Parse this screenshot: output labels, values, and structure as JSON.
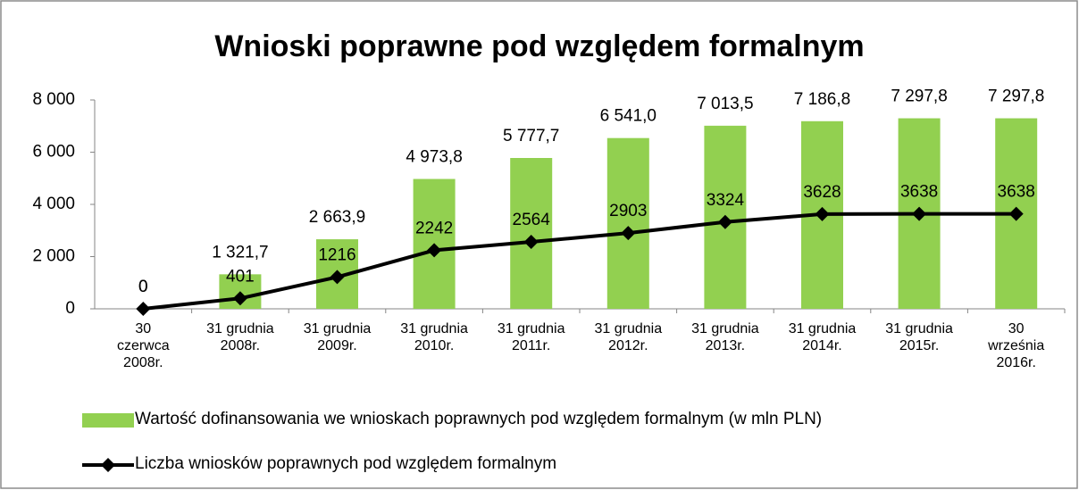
{
  "chart_data": {
    "type": "bar_line",
    "title": "Wnioski poprawne pod względem formalnym",
    "categories": [
      "30\nczerwca\n2008r.",
      "31 grudnia\n2008r.",
      "31 grudnia\n2009r.",
      "31 grudnia\n2010r.",
      "31 grudnia\n2011r.",
      "31 grudnia\n2012r.",
      "31 grudnia\n2013r.",
      "31 grudnia\n2014r.",
      "31 grudnia\n2015r.",
      "30\nwrześnia\n2016r."
    ],
    "series": [
      {
        "name": "Wartość dofinansowania we wnioskach poprawnych pod względem formalnym (w mln PLN)",
        "type": "bar",
        "color": "#92d050",
        "values": [
          0,
          1321.7,
          2663.9,
          4973.8,
          5777.7,
          6541.0,
          7013.5,
          7186.8,
          7297.8,
          7297.8
        ],
        "value_labels": [
          "0",
          "1 321,7",
          "2 663,9",
          "4 973,8",
          "5 777,7",
          "6 541,0",
          "7 013,5",
          "7 186,8",
          "7 297,8",
          "7 297,8"
        ]
      },
      {
        "name": "Liczba wniosków poprawnych pod względem formalnym",
        "type": "line",
        "color": "#000000",
        "values": [
          0,
          401,
          1216,
          2242,
          2564,
          2903,
          3324,
          3628,
          3638,
          3638
        ]
      }
    ],
    "ylim": [
      0,
      8000
    ],
    "yticks": [
      0,
      {
        "value": 2000,
        "label": "2 000"
      },
      {
        "value": 4000,
        "label": "4 000"
      },
      {
        "value": 6000,
        "label": "6 000"
      },
      {
        "value": 8000,
        "label": "8 000"
      }
    ]
  }
}
